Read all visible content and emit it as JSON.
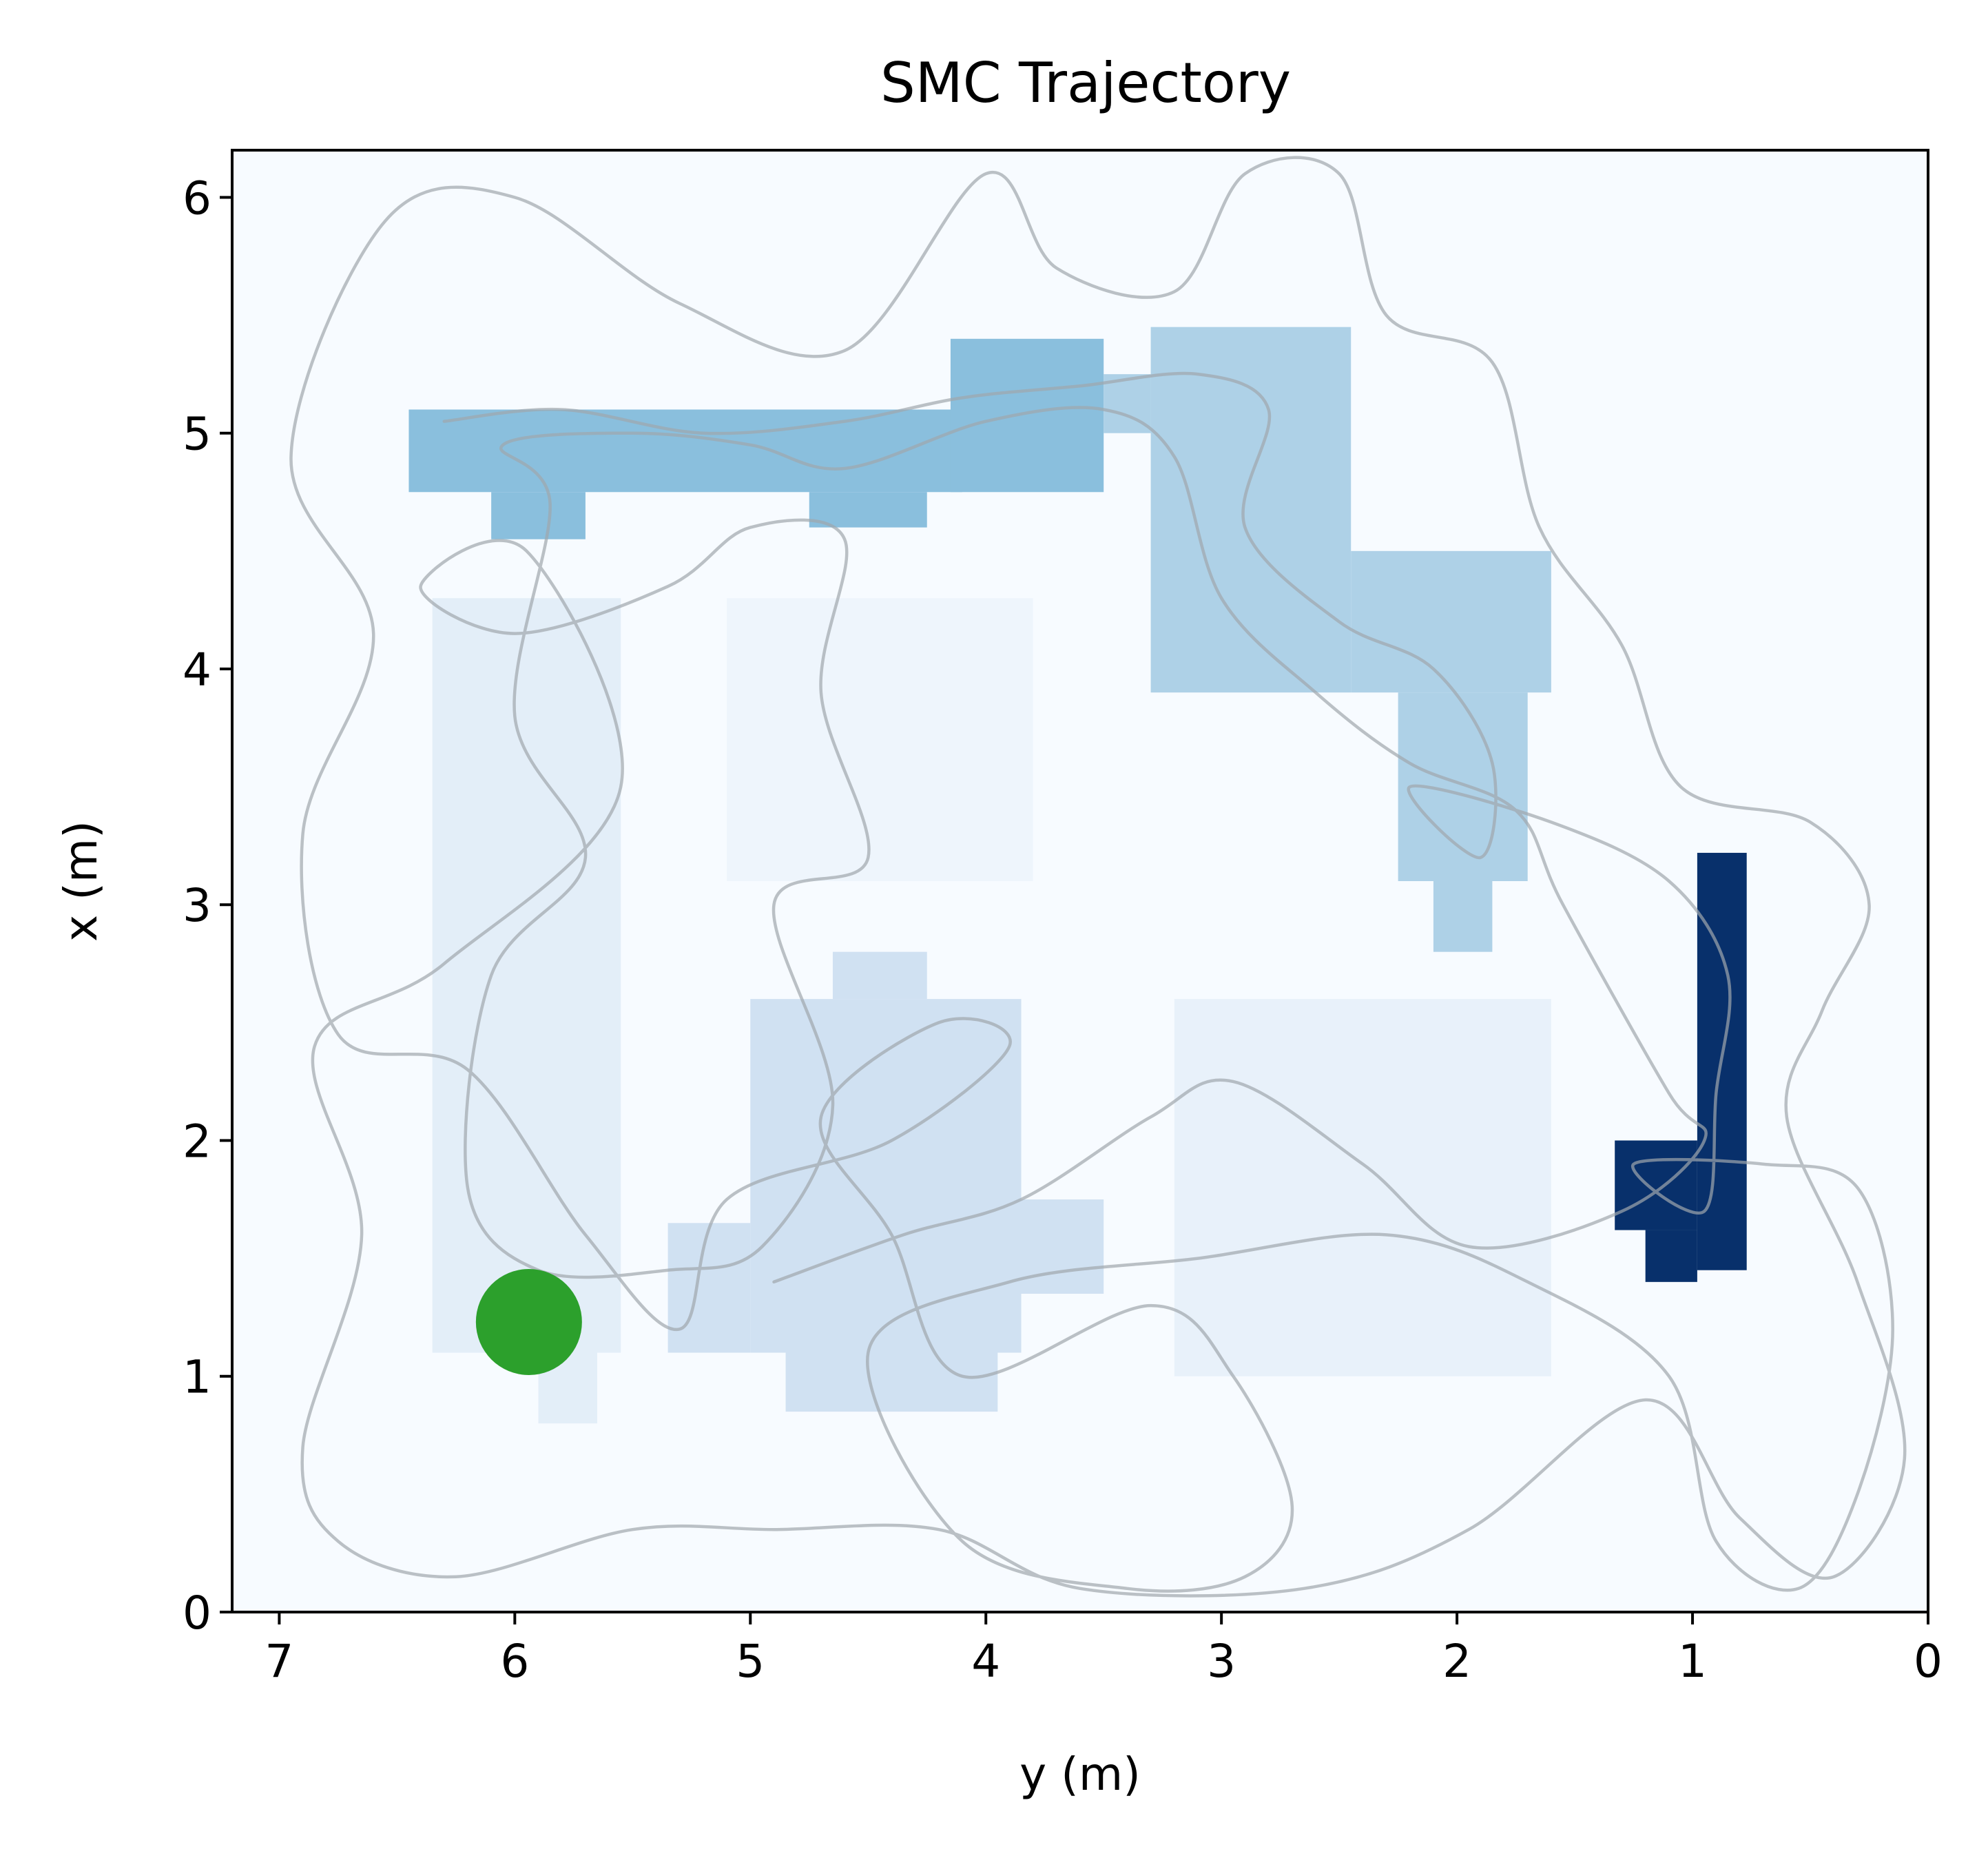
{
  "chart_data": {
    "type": "heatmap",
    "title": "SMC Trajectory",
    "xlabel": "y (m)",
    "ylabel": "x (m)",
    "xlim": [
      7.2,
      0
    ],
    "ylim": [
      0,
      6.2
    ],
    "x_ticks": [
      "7",
      "6",
      "5",
      "4",
      "3",
      "2",
      "1",
      "0"
    ],
    "y_ticks": [
      "0",
      "1",
      "2",
      "3",
      "4",
      "5",
      "6"
    ],
    "x_tick_values": [
      7,
      6,
      5,
      4,
      3,
      2,
      1,
      0
    ],
    "y_tick_values": [
      0,
      1,
      2,
      3,
      4,
      5,
      6
    ],
    "colormap": "Blues",
    "background_color": "#f7fbff",
    "trajectory_color": "#a0a6ad",
    "start_marker": {
      "y": 5.94,
      "x": 1.23,
      "color": "#2ca02c"
    },
    "coverage_regions": [
      {
        "name": "left-column",
        "y_range": [
          6.35,
          5.55
        ],
        "x_range": [
          1.1,
          4.3
        ],
        "color": "#e3eef8"
      },
      {
        "name": "left-column-lower",
        "y_range": [
          5.9,
          5.65
        ],
        "x_range": [
          0.8,
          1.1
        ],
        "color": "#e3eef8"
      },
      {
        "name": "center-column",
        "y_range": [
          5.1,
          3.8
        ],
        "x_range": [
          3.1,
          4.3
        ],
        "color": "#eef5fc"
      },
      {
        "name": "bottom-center",
        "y_range": [
          5.0,
          3.85
        ],
        "x_range": [
          1.1,
          2.6
        ],
        "color": "#d0e1f2"
      },
      {
        "name": "bottom-center-top",
        "y_range": [
          4.65,
          4.25
        ],
        "x_range": [
          2.6,
          2.8
        ],
        "color": "#d0e1f2"
      },
      {
        "name": "bottom-center-left",
        "y_range": [
          5.35,
          5.0
        ],
        "x_range": [
          1.1,
          1.65
        ],
        "color": "#d0e1f2"
      },
      {
        "name": "bottom-center-right",
        "y_range": [
          3.85,
          3.5
        ],
        "x_range": [
          1.35,
          1.75
        ],
        "color": "#d0e1f2"
      },
      {
        "name": "bottom-center-foot",
        "y_range": [
          4.85,
          3.95
        ],
        "x_range": [
          0.85,
          1.1
        ],
        "color": "#d0e1f2"
      },
      {
        "name": "bottom-right",
        "y_range": [
          3.2,
          1.6
        ],
        "x_range": [
          1.0,
          2.6
        ],
        "color": "#e8f1fa"
      },
      {
        "name": "top-bar",
        "y_range": [
          6.45,
          4.1
        ],
        "x_range": [
          4.75,
          5.1
        ],
        "color": "#8abfdd"
      },
      {
        "name": "top-bar-lower-left",
        "y_range": [
          6.1,
          5.7
        ],
        "x_range": [
          4.55,
          4.75
        ],
        "color": "#8abfdd"
      },
      {
        "name": "top-bar-lower-right",
        "y_range": [
          4.75,
          4.25
        ],
        "x_range": [
          4.6,
          4.75
        ],
        "color": "#8abfdd"
      },
      {
        "name": "top-bar-bump",
        "y_range": [
          4.15,
          3.5
        ],
        "x_range": [
          4.75,
          5.4
        ],
        "color": "#8abfdd"
      },
      {
        "name": "top-right-block",
        "y_range": [
          3.3,
          2.45
        ],
        "x_range": [
          3.9,
          5.45
        ],
        "color": "#aed1e7"
      },
      {
        "name": "top-right-bridge",
        "y_range": [
          3.5,
          3.3
        ],
        "x_range": [
          5.0,
          5.25
        ],
        "color": "#aed1e7"
      },
      {
        "name": "diagonal-block",
        "y_range": [
          2.45,
          1.6
        ],
        "x_range": [
          3.9,
          4.5
        ],
        "color": "#aed1e7"
      },
      {
        "name": "diagonal-lower",
        "y_range": [
          2.25,
          1.7
        ],
        "x_range": [
          3.1,
          3.9
        ],
        "color": "#aed1e7"
      },
      {
        "name": "diagonal-foot",
        "y_range": [
          2.1,
          1.85
        ],
        "x_range": [
          2.8,
          3.1
        ],
        "color": "#aed1e7"
      },
      {
        "name": "right-bar",
        "y_range": [
          0.98,
          0.77
        ],
        "x_range": [
          1.45,
          3.22
        ],
        "color": "#08306b"
      },
      {
        "name": "right-bar-foot",
        "y_range": [
          1.33,
          0.98
        ],
        "x_range": [
          1.62,
          2.0
        ],
        "color": "#08306b"
      },
      {
        "name": "right-bar-foot-low",
        "y_range": [
          1.2,
          0.98
        ],
        "x_range": [
          1.4,
          1.62
        ],
        "color": "#08306b"
      }
    ],
    "trajectory_waypoints": [
      [
        6.3,
        5.05
      ],
      [
        5.8,
        5.1
      ],
      [
        5.2,
        5.0
      ],
      [
        4.6,
        5.05
      ],
      [
        4.1,
        5.15
      ],
      [
        3.6,
        5.2
      ],
      [
        3.1,
        5.25
      ],
      [
        2.8,
        5.1
      ],
      [
        2.9,
        4.6
      ],
      [
        2.5,
        4.2
      ],
      [
        2.1,
        4.0
      ],
      [
        1.85,
        3.6
      ],
      [
        1.9,
        3.2
      ],
      [
        2.2,
        3.5
      ],
      [
        1.6,
        3.35
      ],
      [
        1.1,
        3.1
      ],
      [
        0.85,
        2.7
      ],
      [
        0.9,
        2.2
      ],
      [
        0.95,
        1.7
      ],
      [
        1.25,
        1.9
      ],
      [
        0.7,
        1.9
      ],
      [
        0.3,
        1.8
      ],
      [
        0.15,
        1.2
      ],
      [
        0.3,
        0.5
      ],
      [
        0.55,
        0.1
      ],
      [
        0.9,
        0.3
      ],
      [
        1.1,
        1.0
      ],
      [
        1.7,
        1.4
      ],
      [
        2.3,
        1.6
      ],
      [
        3.1,
        1.5
      ],
      [
        3.9,
        1.4
      ],
      [
        4.5,
        1.1
      ],
      [
        4.1,
        0.3
      ],
      [
        3.4,
        0.1
      ],
      [
        2.9,
        0.15
      ],
      [
        2.7,
        0.45
      ],
      [
        2.95,
        1.0
      ],
      [
        3.3,
        1.3
      ],
      [
        4.1,
        1.0
      ],
      [
        4.4,
        1.6
      ],
      [
        4.7,
        2.1
      ],
      [
        4.2,
        2.5
      ],
      [
        3.9,
        2.4
      ],
      [
        4.4,
        2.0
      ],
      [
        5.1,
        1.75
      ],
      [
        5.3,
        1.2
      ],
      [
        5.7,
        1.6
      ],
      [
        6.2,
        2.3
      ],
      [
        6.75,
        2.45
      ],
      [
        6.9,
        3.3
      ],
      [
        6.6,
        4.15
      ],
      [
        6.95,
        4.9
      ],
      [
        6.55,
        5.9
      ],
      [
        6.0,
        6.0
      ],
      [
        5.3,
        5.55
      ],
      [
        4.6,
        5.35
      ],
      [
        4.0,
        6.1
      ],
      [
        3.7,
        5.7
      ],
      [
        3.2,
        5.6
      ],
      [
        2.9,
        6.1
      ],
      [
        2.5,
        6.1
      ],
      [
        2.3,
        5.5
      ],
      [
        1.85,
        5.3
      ],
      [
        1.65,
        4.6
      ],
      [
        1.3,
        4.1
      ],
      [
        1.05,
        3.5
      ],
      [
        0.5,
        3.35
      ],
      [
        0.25,
        3.0
      ],
      [
        0.45,
        2.55
      ],
      [
        0.6,
        2.1
      ],
      [
        0.3,
        1.4
      ],
      [
        0.1,
        0.65
      ],
      [
        0.4,
        0.15
      ],
      [
        0.8,
        0.4
      ],
      [
        1.2,
        0.9
      ],
      [
        1.95,
        0.35
      ],
      [
        2.65,
        0.1
      ],
      [
        3.6,
        0.1
      ],
      [
        4.2,
        0.35
      ],
      [
        4.9,
        0.35
      ],
      [
        5.5,
        0.35
      ],
      [
        6.25,
        0.15
      ],
      [
        6.75,
        0.3
      ],
      [
        6.9,
        0.7
      ],
      [
        6.65,
        1.6
      ],
      [
        6.85,
        2.4
      ],
      [
        6.3,
        2.75
      ],
      [
        5.55,
        3.5
      ],
      [
        5.95,
        4.5
      ],
      [
        6.4,
        4.35
      ],
      [
        6.0,
        4.15
      ],
      [
        5.35,
        4.35
      ],
      [
        5.0,
        4.6
      ],
      [
        4.6,
        4.55
      ],
      [
        4.7,
        3.9
      ],
      [
        4.5,
        3.2
      ],
      [
        4.9,
        3.0
      ],
      [
        4.65,
        2.15
      ],
      [
        4.95,
        1.55
      ],
      [
        5.35,
        1.45
      ],
      [
        5.9,
        1.45
      ],
      [
        6.2,
        1.8
      ],
      [
        6.1,
        2.7
      ],
      [
        5.7,
        3.2
      ],
      [
        6.0,
        3.8
      ],
      [
        5.85,
        4.7
      ],
      [
        6.05,
        4.95
      ],
      [
        5.5,
        5.0
      ],
      [
        5.0,
        4.95
      ],
      [
        4.6,
        4.85
      ],
      [
        4.0,
        5.05
      ],
      [
        3.5,
        5.1
      ],
      [
        3.2,
        4.9
      ],
      [
        3.0,
        4.3
      ],
      [
        2.6,
        3.9
      ],
      [
        2.2,
        3.6
      ],
      [
        1.75,
        3.4
      ],
      [
        1.55,
        3.0
      ],
      [
        1.1,
        2.2
      ],
      [
        0.95,
        2.0
      ],
      [
        1.3,
        1.7
      ],
      [
        1.95,
        1.55
      ],
      [
        2.4,
        1.9
      ],
      [
        2.95,
        2.25
      ],
      [
        3.3,
        2.1
      ],
      [
        3.85,
        1.75
      ],
      [
        4.35,
        1.6
      ],
      [
        4.9,
        1.4
      ]
    ]
  }
}
